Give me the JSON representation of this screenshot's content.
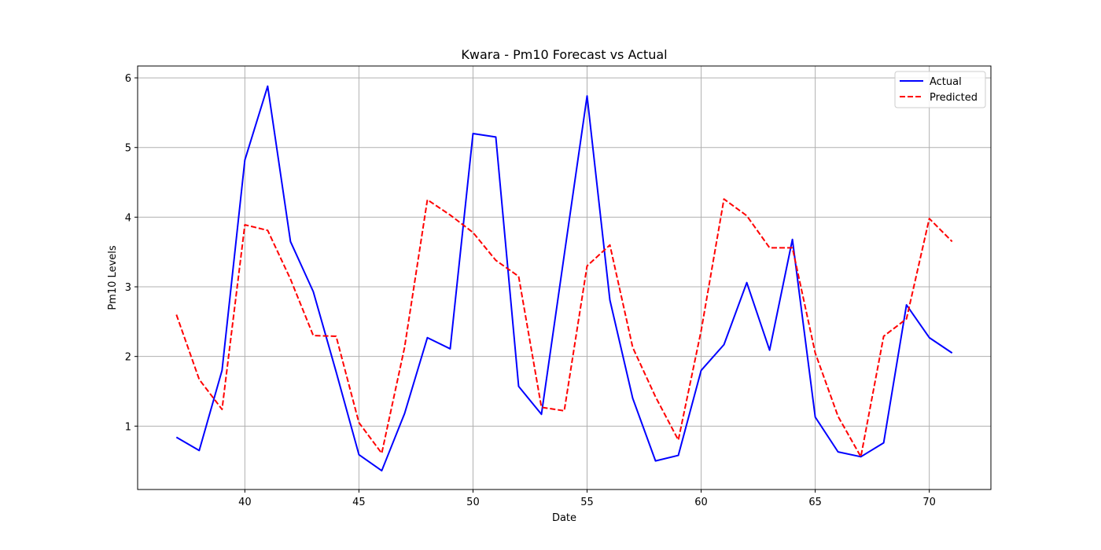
{
  "chart_data": {
    "type": "line",
    "title": "Kwara - Pm10 Forecast vs Actual",
    "xlabel": "Date",
    "ylabel": "Pm10 Levels",
    "xlim": [
      35.3,
      72.7
    ],
    "ylim": [
      0.09,
      6.17
    ],
    "xticks": [
      40,
      45,
      50,
      55,
      60,
      65,
      70
    ],
    "yticks": [
      1,
      2,
      3,
      4,
      5,
      6
    ],
    "grid": true,
    "legend_position": "top-right",
    "x": [
      37,
      38,
      39,
      40,
      41,
      42,
      43,
      44,
      45,
      46,
      47,
      48,
      49,
      50,
      51,
      52,
      53,
      54,
      55,
      56,
      57,
      58,
      59,
      60,
      61,
      62,
      63,
      64,
      65,
      66,
      67,
      68,
      69,
      70,
      71
    ],
    "series": [
      {
        "name": "Actual",
        "color": "#0000ff",
        "style": "solid",
        "values": [
          0.84,
          0.65,
          1.8,
          4.82,
          5.88,
          3.65,
          2.93,
          1.78,
          0.59,
          0.36,
          1.18,
          2.27,
          2.11,
          5.2,
          5.15,
          1.57,
          1.17,
          3.46,
          5.74,
          2.81,
          1.4,
          0.5,
          0.58,
          1.8,
          2.17,
          3.06,
          2.09,
          3.68,
          1.13,
          0.63,
          0.56,
          0.76,
          2.74,
          2.27,
          2.05
        ]
      },
      {
        "name": "Predicted",
        "color": "#ff0000",
        "style": "dashed",
        "values": [
          2.6,
          1.67,
          1.24,
          3.89,
          3.81,
          3.11,
          2.3,
          2.29,
          1.05,
          0.61,
          2.13,
          4.25,
          4.03,
          3.78,
          3.38,
          3.15,
          1.27,
          1.22,
          3.3,
          3.6,
          2.13,
          1.42,
          0.8,
          2.37,
          4.26,
          4.02,
          3.56,
          3.56,
          2.05,
          1.14,
          0.56,
          2.29,
          2.54,
          3.98,
          3.65
        ]
      }
    ]
  }
}
